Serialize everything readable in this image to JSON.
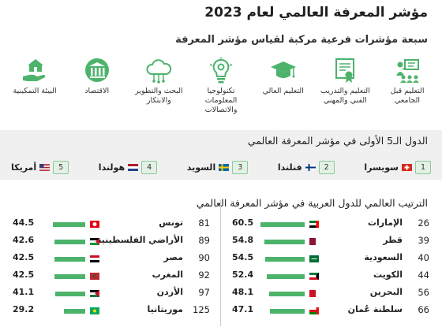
{
  "title": "مؤشر المعرفة العالمي لعام 2023",
  "subtitle": "سبعة مؤشرات فرعية مركبة لقياس مؤشر المعرفة",
  "pillars": [
    {
      "icon": "classroom-icon",
      "label": "التعليم قبل الجامعي"
    },
    {
      "icon": "certificate-icon",
      "label": "التعليم والتدريب الفني والمهني"
    },
    {
      "icon": "graduation-cap-icon",
      "label": "التعليم العالي"
    },
    {
      "icon": "lightbulb-gear-icon",
      "label": "تكنولوجيا المعلومات والاتصالات"
    },
    {
      "icon": "cloud-network-icon",
      "label": "البحث والتطوير والابتكار"
    },
    {
      "icon": "economy-building-icon",
      "label": "الاقتصاد"
    },
    {
      "icon": "hand-house-icon",
      "label": "البيئة التمكينية"
    }
  ],
  "top5": {
    "title": "الدول الـ5 الأولى في مؤشر المعرفة العالمي",
    "items": [
      {
        "rank": "1",
        "name": "سويسرا",
        "flag": "switzerland"
      },
      {
        "rank": "2",
        "name": "فنلندا",
        "flag": "finland"
      },
      {
        "rank": "3",
        "name": "السويد",
        "flag": "sweden"
      },
      {
        "rank": "4",
        "name": "هولندا",
        "flag": "netherlands"
      },
      {
        "rank": "5",
        "name": "أمريكا",
        "flag": "usa"
      }
    ]
  },
  "colors": {
    "bar": "#4db36b",
    "rank_box": "#e3f1e5"
  },
  "chart_data": {
    "type": "bar",
    "title": "الترتيب العالمي للدول العربية في مؤشر المعرفة العالمي",
    "xlim": [
      0,
      60.5
    ],
    "columns": [
      {
        "rows": [
          {
            "rank": "26",
            "country": "الإمارات",
            "value": 60.5,
            "flag": "uae"
          },
          {
            "rank": "39",
            "country": "قطر",
            "value": 54.8,
            "flag": "qatar"
          },
          {
            "rank": "40",
            "country": "السعودية",
            "value": 54.5,
            "flag": "saudi"
          },
          {
            "rank": "44",
            "country": "الكويت",
            "value": 52.4,
            "flag": "kuwait"
          },
          {
            "rank": "56",
            "country": "البحرين",
            "value": 48.1,
            "flag": "bahrain"
          },
          {
            "rank": "66",
            "country": "سلطنة عُمان",
            "value": 47.1,
            "flag": "oman"
          }
        ]
      },
      {
        "rows": [
          {
            "rank": "81",
            "country": "تونس",
            "value": 44.5,
            "flag": "tunisia"
          },
          {
            "rank": "89",
            "country": "الأراضي الفلسطينية",
            "value": 42.6,
            "flag": "palestine"
          },
          {
            "rank": "90",
            "country": "مصر",
            "value": 42.5,
            "flag": "egypt"
          },
          {
            "rank": "92",
            "country": "المغرب",
            "value": 42.5,
            "flag": "morocco"
          },
          {
            "rank": "97",
            "country": "الأردن",
            "value": 41.1,
            "flag": "jordan"
          },
          {
            "rank": "125",
            "country": "موريتانيا",
            "value": 29.2,
            "flag": "mauritania"
          }
        ]
      }
    ]
  }
}
